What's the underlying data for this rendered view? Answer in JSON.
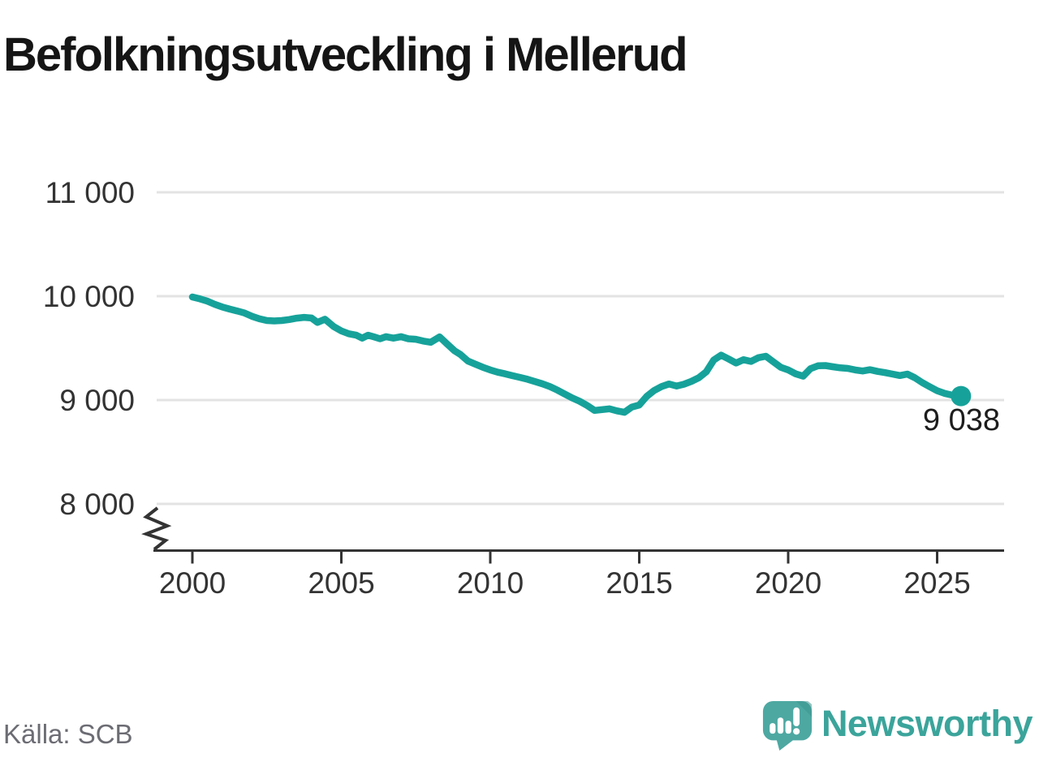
{
  "title": "Befolkningsutveckling i Mellerud",
  "footer": {
    "source": "Källa: SCB",
    "brand": "Newsworthy"
  },
  "colors": {
    "line": "#16a29a",
    "grid": "#e3e3e3",
    "axis": "#333333",
    "tick_label": "#333333",
    "title": "#151515",
    "source": "#6c6c74",
    "brand_text": "#3ba49b",
    "logo_bubble": "#4da8a2",
    "logo_shade": "#3e9690",
    "end_label": "#1d1d1d"
  },
  "chart_data": {
    "type": "line",
    "title": "Befolkningsutveckling i Mellerud",
    "xlabel": "",
    "ylabel": "",
    "grid": "horizontal",
    "axis_break": true,
    "legend": "none",
    "xlim": [
      1998.8,
      2027.2
    ],
    "ylim": [
      7750,
      11000
    ],
    "x_ticks": [
      {
        "value": 2000,
        "label": "2000"
      },
      {
        "value": 2005,
        "label": "2005"
      },
      {
        "value": 2010,
        "label": "2010"
      },
      {
        "value": 2015,
        "label": "2015"
      },
      {
        "value": 2020,
        "label": "2020"
      },
      {
        "value": 2025,
        "label": "2025"
      }
    ],
    "y_ticks": [
      {
        "value": 8000,
        "label": "8 000"
      },
      {
        "value": 9000,
        "label": "9 000"
      },
      {
        "value": 10000,
        "label": "10 000"
      },
      {
        "value": 11000,
        "label": "11 000"
      }
    ],
    "series": [
      {
        "name": "Befolkning",
        "points": [
          [
            2000.0,
            9992
          ],
          [
            2000.25,
            9974
          ],
          [
            2000.5,
            9952
          ],
          [
            2000.75,
            9922
          ],
          [
            2001.0,
            9896
          ],
          [
            2001.25,
            9876
          ],
          [
            2001.5,
            9858
          ],
          [
            2001.75,
            9838
          ],
          [
            2002.0,
            9806
          ],
          [
            2002.25,
            9782
          ],
          [
            2002.5,
            9766
          ],
          [
            2002.75,
            9762
          ],
          [
            2003.0,
            9766
          ],
          [
            2003.25,
            9775
          ],
          [
            2003.5,
            9788
          ],
          [
            2003.75,
            9796
          ],
          [
            2004.0,
            9790
          ],
          [
            2004.2,
            9748
          ],
          [
            2004.45,
            9778
          ],
          [
            2004.75,
            9706
          ],
          [
            2005.0,
            9666
          ],
          [
            2005.25,
            9638
          ],
          [
            2005.5,
            9624
          ],
          [
            2005.7,
            9596
          ],
          [
            2005.9,
            9624
          ],
          [
            2006.1,
            9608
          ],
          [
            2006.3,
            9590
          ],
          [
            2006.5,
            9610
          ],
          [
            2006.75,
            9596
          ],
          [
            2007.0,
            9610
          ],
          [
            2007.25,
            9590
          ],
          [
            2007.5,
            9585
          ],
          [
            2007.75,
            9568
          ],
          [
            2008.0,
            9556
          ],
          [
            2008.3,
            9608
          ],
          [
            2008.55,
            9540
          ],
          [
            2008.8,
            9474
          ],
          [
            2009.0,
            9438
          ],
          [
            2009.25,
            9376
          ],
          [
            2009.5,
            9345
          ],
          [
            2009.75,
            9316
          ],
          [
            2010.0,
            9290
          ],
          [
            2010.25,
            9268
          ],
          [
            2010.5,
            9252
          ],
          [
            2010.75,
            9234
          ],
          [
            2011.0,
            9218
          ],
          [
            2011.25,
            9200
          ],
          [
            2011.5,
            9178
          ],
          [
            2011.75,
            9156
          ],
          [
            2012.0,
            9130
          ],
          [
            2012.25,
            9096
          ],
          [
            2012.5,
            9058
          ],
          [
            2012.75,
            9020
          ],
          [
            2013.0,
            8988
          ],
          [
            2013.25,
            8948
          ],
          [
            2013.5,
            8900
          ],
          [
            2013.75,
            8908
          ],
          [
            2014.0,
            8916
          ],
          [
            2014.25,
            8896
          ],
          [
            2014.5,
            8882
          ],
          [
            2014.75,
            8932
          ],
          [
            2015.0,
            8952
          ],
          [
            2015.25,
            9035
          ],
          [
            2015.5,
            9092
          ],
          [
            2015.75,
            9130
          ],
          [
            2016.0,
            9155
          ],
          [
            2016.25,
            9135
          ],
          [
            2016.5,
            9152
          ],
          [
            2016.75,
            9180
          ],
          [
            2017.0,
            9215
          ],
          [
            2017.25,
            9272
          ],
          [
            2017.5,
            9385
          ],
          [
            2017.75,
            9432
          ],
          [
            2018.0,
            9395
          ],
          [
            2018.25,
            9356
          ],
          [
            2018.5,
            9388
          ],
          [
            2018.75,
            9372
          ],
          [
            2019.0,
            9408
          ],
          [
            2019.25,
            9422
          ],
          [
            2019.5,
            9368
          ],
          [
            2019.75,
            9316
          ],
          [
            2020.0,
            9290
          ],
          [
            2020.25,
            9252
          ],
          [
            2020.5,
            9230
          ],
          [
            2020.75,
            9302
          ],
          [
            2021.0,
            9330
          ],
          [
            2021.25,
            9332
          ],
          [
            2021.5,
            9320
          ],
          [
            2021.75,
            9310
          ],
          [
            2022.0,
            9305
          ],
          [
            2022.25,
            9290
          ],
          [
            2022.5,
            9280
          ],
          [
            2022.75,
            9292
          ],
          [
            2023.0,
            9276
          ],
          [
            2023.25,
            9264
          ],
          [
            2023.5,
            9250
          ],
          [
            2023.75,
            9236
          ],
          [
            2024.0,
            9250
          ],
          [
            2024.25,
            9215
          ],
          [
            2024.5,
            9168
          ],
          [
            2024.75,
            9128
          ],
          [
            2025.0,
            9090
          ],
          [
            2025.25,
            9064
          ],
          [
            2025.5,
            9048
          ],
          [
            2025.8,
            9038
          ]
        ]
      }
    ],
    "end_annotation": {
      "label": "9 038",
      "x": 2025.8,
      "y": 9038
    }
  }
}
